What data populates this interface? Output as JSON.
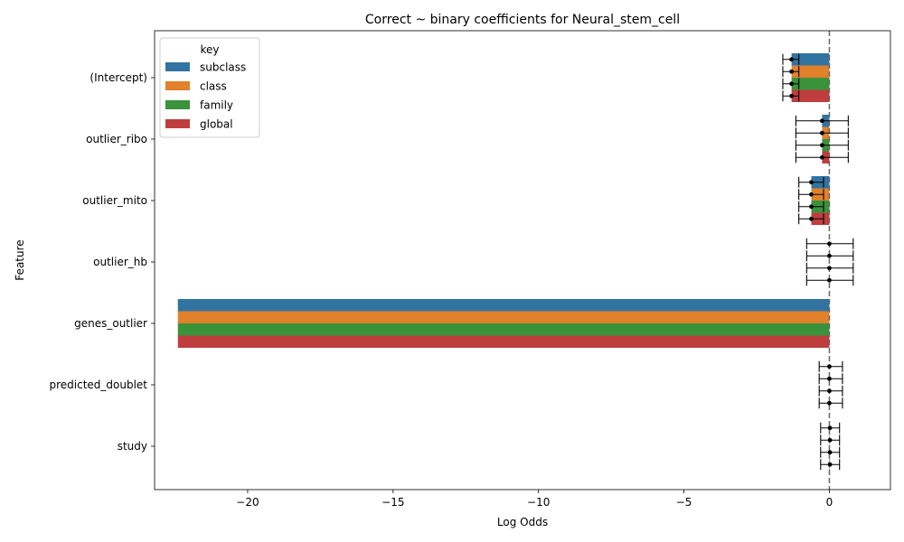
{
  "chart_data": {
    "type": "bar",
    "orientation": "horizontal",
    "title": "Correct ~ binary coefficients for Neural_stem_cell",
    "xlabel": "Log Odds",
    "ylabel": "Feature",
    "xlim": [
      -23.2,
      2.1
    ],
    "xticks": [
      -20,
      -15,
      -10,
      -5,
      0
    ],
    "xtick_labels": [
      "−20",
      "−15",
      "−10",
      "−5",
      "0"
    ],
    "reference_line": 0,
    "legend_title": "key",
    "legend_position": "top-left",
    "categories": [
      "(Intercept)",
      "outlier_ribo",
      "outlier_mito",
      "outlier_hb",
      "genes_outlier",
      "predicted_doublet",
      "study"
    ],
    "series": [
      {
        "name": "subclass",
        "color": "#3274a1",
        "values": [
          -1.3,
          -0.25,
          -0.62,
          0.0,
          -22.4,
          0.0,
          0.02
        ],
        "ci_low": [
          -1.6,
          -1.15,
          -1.05,
          -0.78,
          null,
          -0.35,
          -0.3
        ],
        "ci_high": [
          -1.05,
          0.65,
          -0.2,
          0.82,
          null,
          0.45,
          0.35
        ]
      },
      {
        "name": "class",
        "color": "#e1812c",
        "values": [
          -1.3,
          -0.25,
          -0.62,
          0.0,
          -22.4,
          0.0,
          0.02
        ],
        "ci_low": [
          -1.6,
          -1.15,
          -1.05,
          -0.78,
          null,
          -0.35,
          -0.3
        ],
        "ci_high": [
          -1.05,
          0.65,
          -0.2,
          0.82,
          null,
          0.45,
          0.35
        ]
      },
      {
        "name": "family",
        "color": "#3a923a",
        "values": [
          -1.3,
          -0.25,
          -0.62,
          0.0,
          -22.4,
          0.0,
          0.02
        ],
        "ci_low": [
          -1.6,
          -1.15,
          -1.05,
          -0.78,
          null,
          -0.35,
          -0.3
        ],
        "ci_high": [
          -1.05,
          0.65,
          -0.2,
          0.82,
          null,
          0.45,
          0.35
        ]
      },
      {
        "name": "global",
        "color": "#c03d3e",
        "values": [
          -1.3,
          -0.25,
          -0.62,
          0.0,
          -22.4,
          0.0,
          0.02
        ],
        "ci_low": [
          -1.6,
          -1.15,
          -1.05,
          -0.78,
          null,
          -0.35,
          -0.3
        ],
        "ci_high": [
          -1.05,
          0.65,
          -0.2,
          0.82,
          null,
          0.45,
          0.35
        ]
      }
    ]
  }
}
